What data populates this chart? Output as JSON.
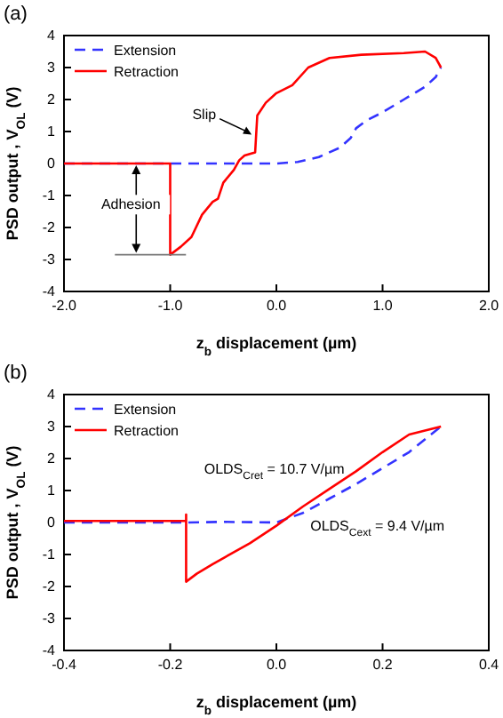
{
  "chart_data": [
    {
      "type": "line",
      "title": "(a)",
      "xlabel": "z$_{b}$ displacement (µm)",
      "ylabel": "PSD output , V$_{OL}$ (V)",
      "xlim": [
        -2,
        2
      ],
      "xticks": [
        {
          "value": -2,
          "label": "-2.0"
        },
        {
          "value": -1,
          "label": "-1.0"
        },
        {
          "value": 0,
          "label": "0.0"
        },
        {
          "value": 1,
          "label": "1.0"
        },
        {
          "value": 2,
          "label": "2.0"
        }
      ],
      "ylim": [
        -4,
        4
      ],
      "yticks": [
        -4,
        -3,
        -2,
        -1,
        0,
        1,
        2,
        3,
        4
      ],
      "grid": false,
      "legend": "top left",
      "series": [
        {
          "name": "Extension",
          "color": "#3333ff",
          "line_style": "dashed",
          "x": [
            -2,
            -1,
            0,
            0.2,
            0.4,
            0.6,
            0.7,
            0.75,
            0.85,
            1.0,
            1.2,
            1.4,
            1.5,
            1.55
          ],
          "values": [
            0,
            0,
            0,
            0.05,
            0.2,
            0.5,
            0.8,
            1.1,
            1.35,
            1.6,
            2.0,
            2.4,
            2.7,
            3.0
          ]
        },
        {
          "name": "Retraction",
          "color": "#ff0000",
          "line_style": "solid",
          "x": [
            -2,
            -1,
            -1,
            -0.9,
            -0.8,
            -0.7,
            -0.6,
            -0.55,
            -0.5,
            -0.4,
            -0.35,
            -0.3,
            -0.2,
            -0.18,
            -0.1,
            0,
            0.15,
            0.3,
            0.5,
            0.8,
            1.2,
            1.4,
            1.5,
            1.55
          ],
          "values": [
            0,
            0,
            -2.85,
            -2.6,
            -2.3,
            -1.6,
            -1.2,
            -1.1,
            -0.6,
            -0.2,
            0.1,
            0.25,
            0.35,
            1.5,
            1.9,
            2.2,
            2.45,
            3.0,
            3.3,
            3.4,
            3.45,
            3.5,
            3.3,
            3.0
          ]
        }
      ],
      "annotations": [
        {
          "text": "Slip",
          "x": -0.2,
          "y": 0.9
        },
        "Adhesion"
      ]
    },
    {
      "type": "line",
      "title": "(b)",
      "xlabel": "z$_{b}$ displacement (µm)",
      "ylabel": "PSD output , V$_{OL}$ (V)",
      "xlim": [
        -0.4,
        0.4
      ],
      "xticks": [
        -0.4,
        -0.2,
        {
          "value": 0,
          "label": "0.0"
        },
        0.2,
        0.4
      ],
      "ylim": [
        -4,
        4
      ],
      "yticks": [
        -4,
        -3,
        -2,
        -1,
        0,
        1,
        2,
        3,
        4
      ],
      "grid": false,
      "legend": "top left",
      "series": [
        {
          "name": "Extension",
          "color": "#3333ff",
          "line_style": "dashed",
          "x": [
            -0.4,
            -0.17,
            -0.1,
            0,
            0.05,
            0.1,
            0.15,
            0.2,
            0.25,
            0.31
          ],
          "values": [
            0,
            0,
            0.02,
            0,
            0.3,
            0.75,
            1.2,
            1.7,
            2.2,
            3.0
          ]
        },
        {
          "name": "Retraction",
          "color": "#ff0000",
          "line_style": "solid",
          "x": [
            -0.4,
            -0.17,
            -0.17,
            -0.17,
            -0.15,
            -0.12,
            -0.05,
            0,
            0.05,
            0.1,
            0.15,
            0.2,
            0.25,
            0.31
          ],
          "values": [
            0.05,
            0.05,
            0.25,
            -1.85,
            -1.6,
            -1.3,
            -0.65,
            -0.1,
            0.5,
            1.05,
            1.6,
            2.2,
            2.75,
            3.0
          ]
        }
      ],
      "annotations": [
        "OLDS$_{Cret}$ = 10.7 V/µm",
        "OLDS$_{Cext}$ = 9.4 V/µm"
      ]
    }
  ]
}
